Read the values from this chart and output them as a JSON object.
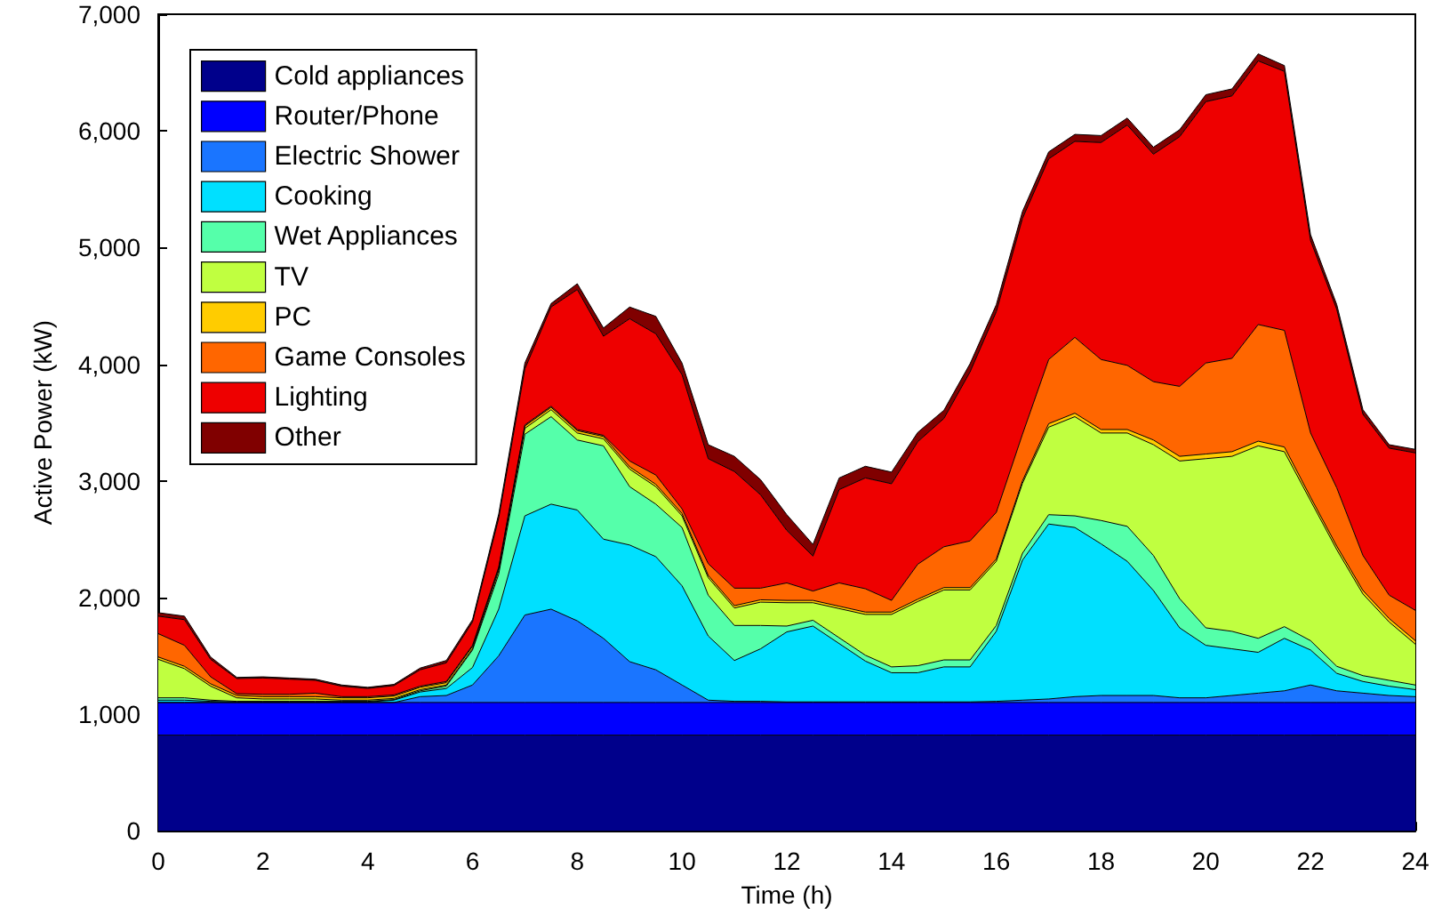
{
  "chart_data": {
    "type": "area",
    "stacked": true,
    "xlabel": "Time (h)",
    "ylabel": "Active Power (kW)",
    "x": [
      0,
      0.5,
      1,
      1.5,
      2,
      2.5,
      3,
      3.5,
      4,
      4.5,
      5,
      5.5,
      6,
      6.5,
      7,
      7.5,
      8,
      8.5,
      9,
      9.5,
      10,
      10.5,
      11,
      11.5,
      12,
      12.5,
      13,
      13.5,
      14,
      14.5,
      15,
      15.5,
      16,
      16.5,
      17,
      17.5,
      18,
      18.5,
      19,
      19.5,
      20,
      20.5,
      21,
      21.5,
      22,
      22.5,
      23,
      23.5,
      24
    ],
    "xlim": [
      0,
      24
    ],
    "xticks": [
      0,
      2,
      4,
      6,
      8,
      10,
      12,
      14,
      16,
      18,
      20,
      22,
      24
    ],
    "ylim": [
      0,
      7000
    ],
    "yticks": [
      0,
      {
        "value": 1000,
        "label": "1,000"
      },
      {
        "value": 2000,
        "label": "2,000"
      },
      {
        "value": 3000,
        "label": "3,000"
      },
      {
        "value": 4000,
        "label": "4,000"
      },
      {
        "value": 5000,
        "label": "5,000"
      },
      {
        "value": 6000,
        "label": "6,000"
      },
      {
        "value": 7000,
        "label": "7,000"
      }
    ],
    "grid": false,
    "legend": "top left",
    "marker": "none",
    "line_style": "solid",
    "series": [
      {
        "name": "Cold appliances",
        "color": "#00008b",
        "values": [
          820,
          820,
          820,
          820,
          820,
          820,
          820,
          820,
          820,
          820,
          820,
          820,
          820,
          820,
          820,
          820,
          820,
          820,
          820,
          820,
          820,
          820,
          820,
          820,
          820,
          820,
          820,
          820,
          820,
          820,
          820,
          820,
          820,
          820,
          820,
          820,
          820,
          820,
          820,
          820,
          820,
          820,
          820,
          820,
          820,
          820,
          820,
          820,
          820
        ]
      },
      {
        "name": "Router/Phone",
        "color": "#0000ff",
        "values": [
          280,
          280,
          280,
          280,
          280,
          280,
          280,
          280,
          280,
          280,
          280,
          280,
          280,
          280,
          280,
          280,
          280,
          280,
          280,
          280,
          280,
          280,
          280,
          280,
          280,
          280,
          280,
          280,
          280,
          280,
          280,
          280,
          280,
          280,
          280,
          280,
          280,
          280,
          280,
          280,
          280,
          280,
          280,
          280,
          280,
          280,
          280,
          280,
          280
        ]
      },
      {
        "name": "Electric Shower",
        "color": "#1a75ff",
        "values": [
          0,
          0,
          0,
          0,
          0,
          0,
          0,
          0,
          0,
          0,
          50,
          60,
          150,
          400,
          750,
          800,
          700,
          550,
          350,
          280,
          150,
          20,
          10,
          10,
          5,
          5,
          5,
          5,
          5,
          5,
          5,
          5,
          10,
          20,
          30,
          50,
          60,
          60,
          60,
          40,
          40,
          60,
          80,
          100,
          150,
          100,
          80,
          60,
          50
        ]
      },
      {
        "name": "Cooking",
        "color": "#00e0ff",
        "values": [
          20,
          20,
          10,
          5,
          5,
          5,
          5,
          5,
          5,
          20,
          40,
          60,
          150,
          400,
          850,
          900,
          950,
          850,
          1000,
          970,
          850,
          550,
          350,
          450,
          600,
          650,
          500,
          350,
          250,
          250,
          300,
          300,
          600,
          1200,
          1500,
          1450,
          1300,
          1150,
          900,
          600,
          450,
          400,
          350,
          450,
          300,
          150,
          100,
          80,
          60
        ]
      },
      {
        "name": "Wet Appliances",
        "color": "#55ffaa",
        "values": [
          20,
          20,
          10,
          5,
          5,
          5,
          5,
          5,
          5,
          5,
          10,
          20,
          150,
          300,
          700,
          750,
          600,
          800,
          500,
          450,
          500,
          350,
          300,
          200,
          50,
          50,
          50,
          50,
          50,
          60,
          60,
          60,
          50,
          60,
          80,
          100,
          200,
          300,
          300,
          250,
          150,
          150,
          120,
          100,
          80,
          60,
          50,
          50,
          40
        ]
      },
      {
        "name": "TV",
        "color": "#c0ff40",
        "values": [
          330,
          250,
          120,
          30,
          20,
          20,
          20,
          10,
          10,
          10,
          10,
          10,
          10,
          30,
          50,
          60,
          60,
          60,
          150,
          150,
          100,
          150,
          150,
          200,
          200,
          150,
          250,
          350,
          450,
          550,
          600,
          600,
          550,
          600,
          750,
          850,
          750,
          800,
          950,
          1180,
          1450,
          1500,
          1650,
          1500,
          1200,
          1000,
          700,
          500,
          350
        ]
      },
      {
        "name": "PC",
        "color": "#ffcc00",
        "values": [
          20,
          20,
          20,
          20,
          20,
          20,
          20,
          20,
          20,
          20,
          20,
          20,
          20,
          20,
          20,
          20,
          20,
          20,
          20,
          20,
          20,
          20,
          20,
          20,
          20,
          20,
          20,
          20,
          20,
          20,
          20,
          20,
          20,
          20,
          30,
          30,
          30,
          30,
          40,
          40,
          40,
          40,
          40,
          40,
          30,
          30,
          30,
          30,
          30
        ]
      },
      {
        "name": "Game Consoles",
        "color": "#ff6600",
        "values": [
          200,
          180,
          60,
          15,
          20,
          20,
          30,
          10,
          10,
          10,
          10,
          10,
          10,
          10,
          10,
          10,
          10,
          10,
          50,
          80,
          40,
          100,
          150,
          100,
          150,
          80,
          200,
          200,
          100,
          300,
          350,
          400,
          400,
          400,
          550,
          650,
          600,
          550,
          500,
          600,
          780,
          800,
          1000,
          1000,
          550,
          500,
          300,
          200,
          260
        ]
      },
      {
        "name": "Lighting",
        "color": "#ee0000",
        "values": [
          150,
          220,
          150,
          130,
          140,
          130,
          110,
          90,
          70,
          80,
          140,
          160,
          200,
          420,
          480,
          850,
          1200,
          850,
          1220,
          1210,
          1150,
          900,
          1000,
          800,
          450,
          300,
          800,
          950,
          1000,
          1050,
          1100,
          1450,
          1720,
          1850,
          1720,
          1680,
          1860,
          2060,
          1950,
          2140,
          2240,
          2250,
          2260,
          2220,
          1650,
          1530,
          1210,
          1260,
          1350
        ]
      },
      {
        "name": "Other",
        "color": "#800000",
        "values": [
          30,
          30,
          20,
          10,
          10,
          10,
          10,
          10,
          10,
          10,
          15,
          20,
          20,
          35,
          50,
          30,
          50,
          70,
          100,
          150,
          100,
          120,
          130,
          130,
          135,
          100,
          100,
          100,
          100,
          80,
          70,
          70,
          60,
          60,
          60,
          60,
          60,
          60,
          60,
          60,
          60,
          60,
          60,
          50,
          50,
          40,
          40,
          30,
          30
        ]
      }
    ]
  }
}
